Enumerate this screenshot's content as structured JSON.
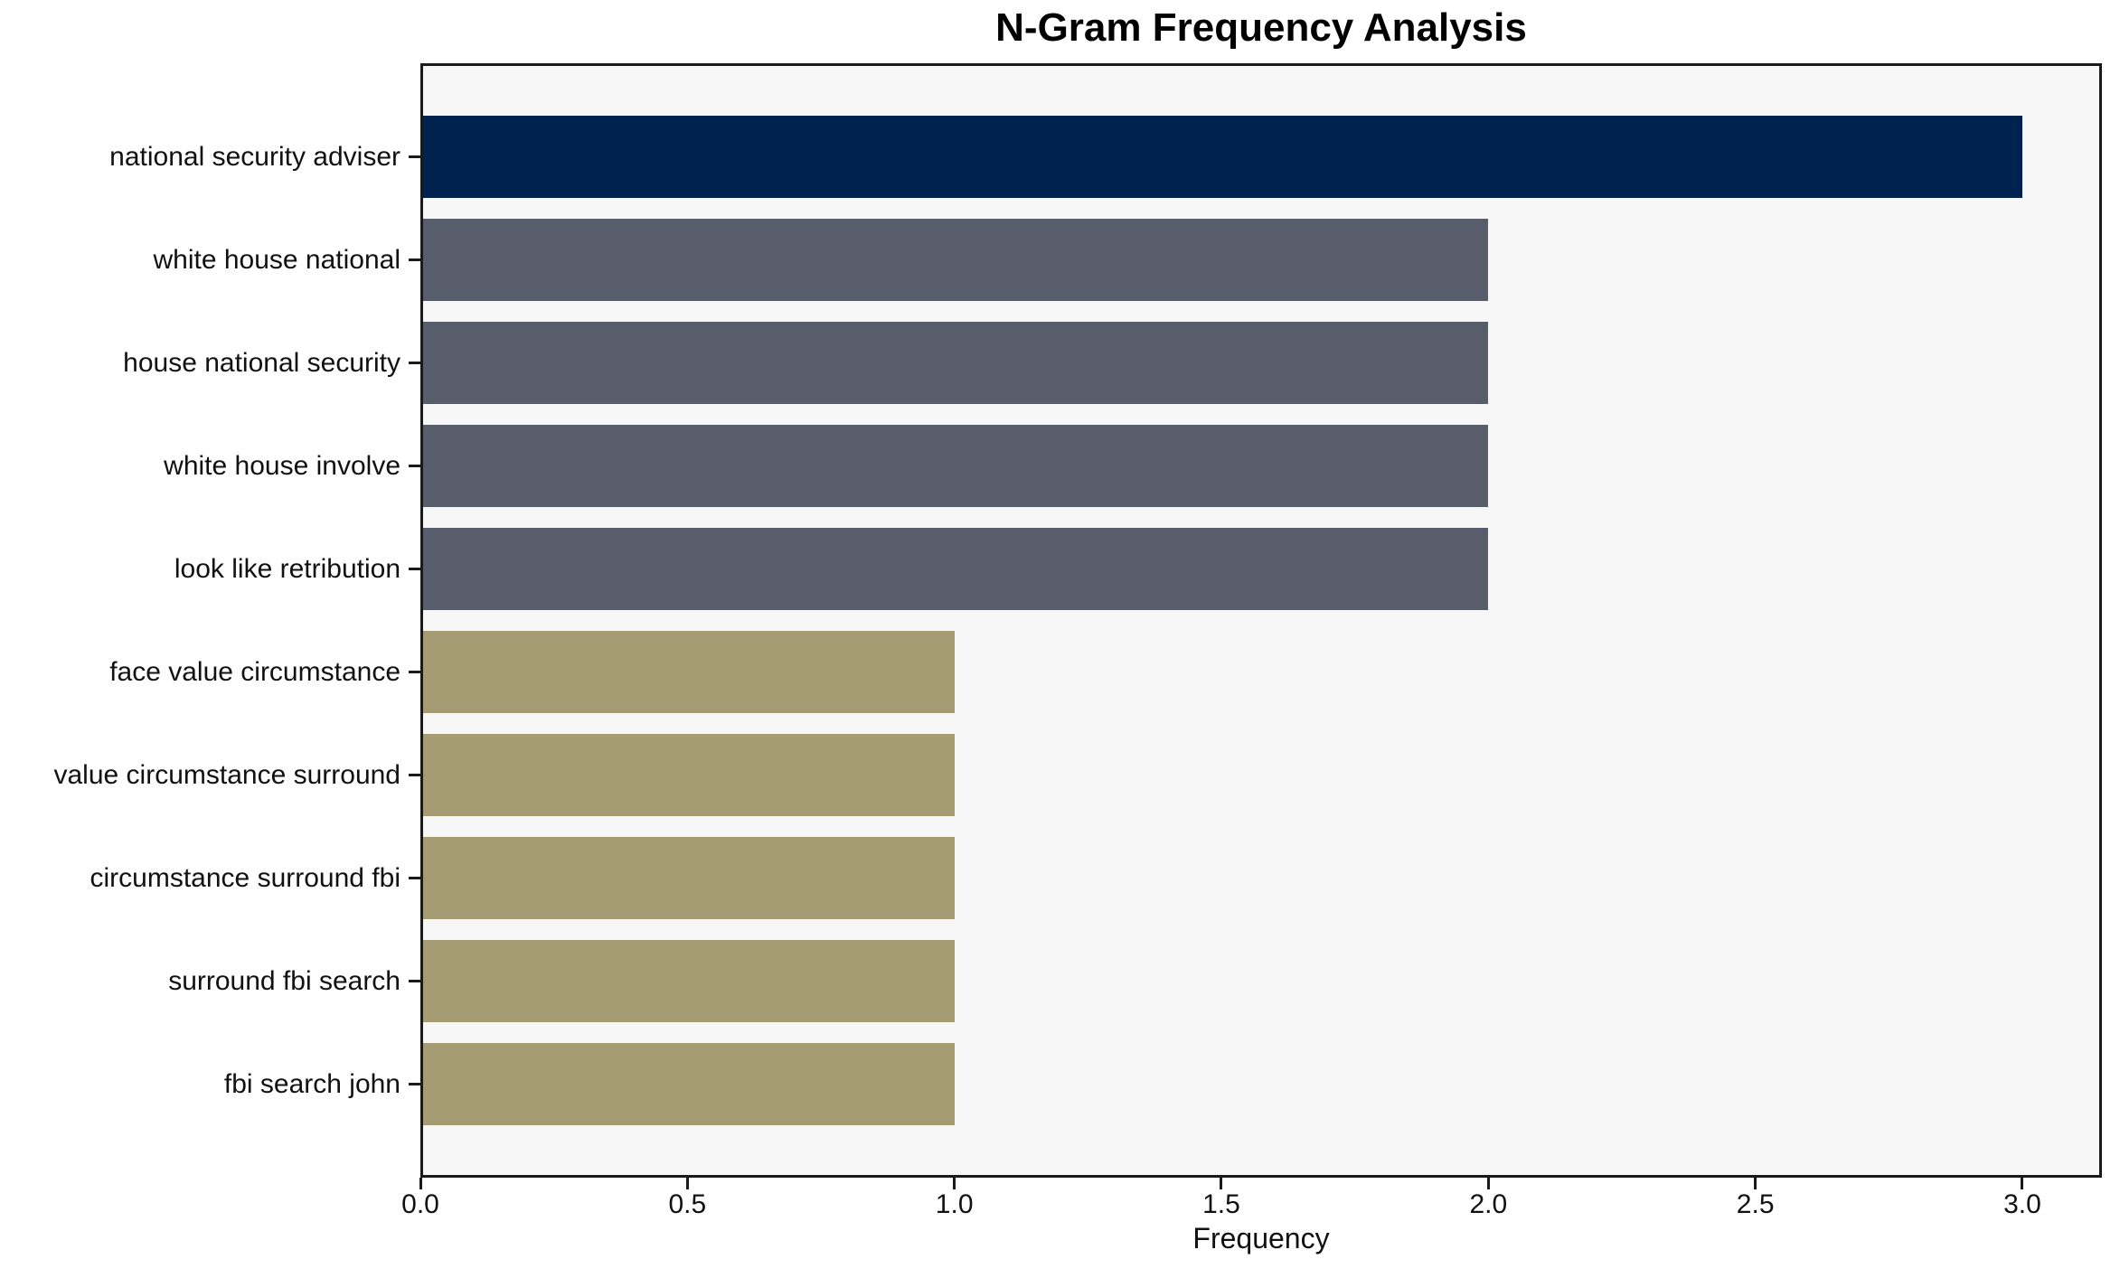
{
  "chart_data": {
    "type": "bar",
    "orientation": "horizontal",
    "title": "N-Gram Frequency Analysis",
    "xlabel": "Frequency",
    "categories": [
      "national security adviser",
      "white house national",
      "house national security",
      "white house involve",
      "look like retribution",
      "face value circumstance",
      "value circumstance surround",
      "circumstance surround fbi",
      "surround fbi search",
      "fbi search john"
    ],
    "values": [
      3,
      2,
      2,
      2,
      2,
      1,
      1,
      1,
      1,
      1
    ],
    "bar_colors": [
      "#00224E",
      "#575D6B",
      "#575D6B",
      "#575D6B",
      "#575D6B",
      "#A59C74",
      "#A59C74",
      "#A59C74",
      "#A59C74",
      "#A59C74"
    ],
    "x_ticks": [
      "0.0",
      "0.5",
      "1.0",
      "1.5",
      "2.0",
      "2.5",
      "3.0"
    ],
    "x_tick_values": [
      0,
      0.5,
      1,
      1.5,
      2,
      2.5,
      3
    ],
    "xlim": [
      0,
      3.149
    ],
    "grid": false,
    "plot_background": "#F7F7F8",
    "axis_color": "#1A1A1A"
  }
}
